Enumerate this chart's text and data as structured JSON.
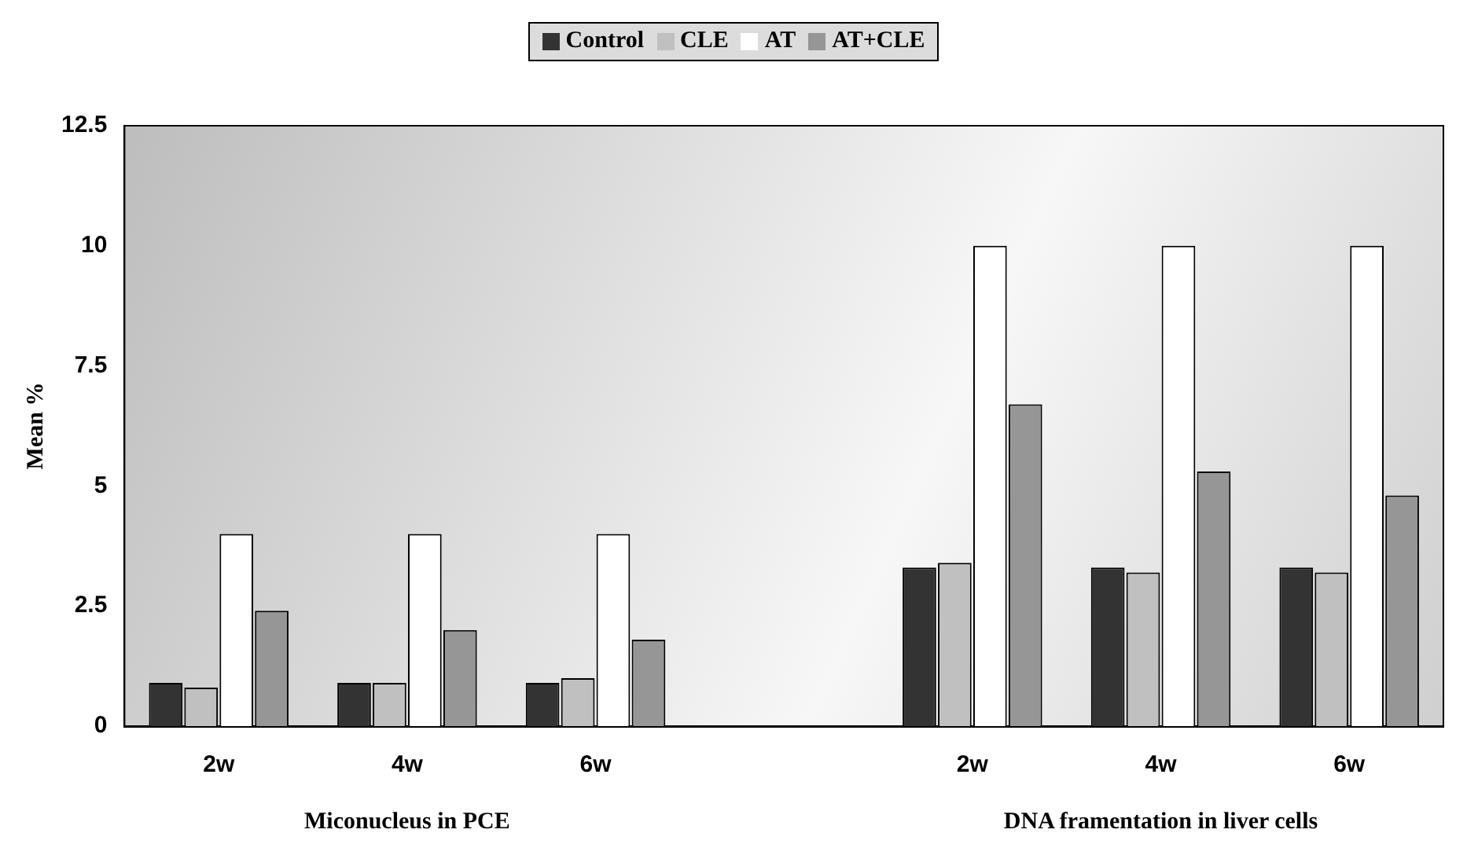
{
  "chart_data": {
    "type": "bar",
    "ylabel": "Mean %",
    "categories": [
      "2w",
      "4w",
      "6w",
      null,
      "2w",
      "4w",
      "6w"
    ],
    "series": [
      {
        "name": "Control",
        "color": "#333333",
        "values": [
          0.9,
          0.9,
          0.9,
          null,
          3.3,
          3.3,
          3.3
        ]
      },
      {
        "name": "CLE",
        "color": "#c0c0c0",
        "values": [
          0.8,
          0.9,
          1.0,
          null,
          3.4,
          3.2,
          3.2
        ]
      },
      {
        "name": "AT",
        "color": "#ffffff",
        "values": [
          4.0,
          4.0,
          4.0,
          null,
          10.0,
          10.0,
          10.0
        ]
      },
      {
        "name": "AT+CLE",
        "color": "#969696",
        "values": [
          2.4,
          2.0,
          1.8,
          null,
          6.7,
          5.3,
          4.8
        ]
      }
    ],
    "ylim": [
      0,
      12.5
    ],
    "yticks": [
      0,
      2.5,
      5,
      7.5,
      10,
      12.5
    ],
    "grid": false,
    "legend": "top",
    "annotations": [
      "Miconucleus in PCE",
      "DNA framentation in liver cells"
    ]
  }
}
